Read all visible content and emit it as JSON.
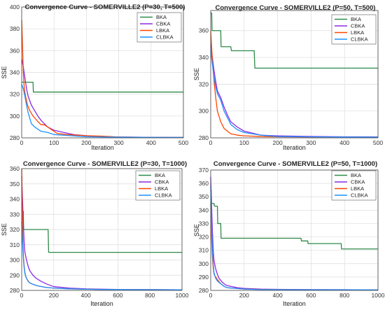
{
  "chart_data": [
    {
      "type": "line",
      "title": "Convergence Curve - SOMERVILLE2 (P=30, T=500)",
      "xlabel": "Iteration",
      "ylabel": "SSE",
      "xlim": [
        0,
        500
      ],
      "ylim": [
        280,
        400
      ],
      "xticks": [
        "0",
        "100",
        "200",
        "300",
        "400",
        "500"
      ],
      "yticks": [
        "280",
        "300",
        "320",
        "340",
        "360",
        "380",
        "400"
      ],
      "grid": true,
      "legend_position": "top-right",
      "series": [
        {
          "name": "BKA",
          "color": "#2e8b4a",
          "x": [
            0,
            35,
            36,
            500
          ],
          "y": [
            331,
            331,
            322,
            322
          ]
        },
        {
          "name": "CBKA",
          "color": "#8a2be2",
          "x": [
            0,
            5,
            10,
            15,
            20,
            30,
            40,
            50,
            60,
            80,
            100,
            130,
            160,
            200,
            250,
            300,
            400,
            500
          ],
          "y": [
            352,
            345,
            335,
            325,
            318,
            310,
            305,
            300,
            296,
            290,
            287,
            285,
            283,
            282,
            281,
            280.8,
            280.5,
            280.4
          ]
        },
        {
          "name": "LBKA",
          "color": "#ff4500",
          "x": [
            0,
            3,
            5,
            8,
            12,
            18,
            25,
            35,
            50,
            60,
            70,
            90,
            110,
            140,
            200,
            250,
            300,
            400,
            500
          ],
          "y": [
            388,
            360,
            340,
            325,
            318,
            310,
            305,
            300,
            295,
            292,
            292,
            288,
            284,
            283,
            282,
            281.5,
            280.8,
            280.5,
            280.4
          ]
        },
        {
          "name": "CLBKA",
          "color": "#1e90ff",
          "x": [
            0,
            5,
            10,
            15,
            20,
            25,
            30,
            40,
            50,
            60,
            80,
            100,
            150,
            200,
            300,
            400,
            500
          ],
          "y": [
            329,
            325,
            318,
            310,
            303,
            298,
            293,
            290,
            288,
            286,
            285,
            283,
            282,
            281,
            280.6,
            280.5,
            280.4
          ]
        }
      ]
    },
    {
      "type": "line",
      "title": "Convergence Curve - SOMERVILLE2 (P=50, T=500)",
      "xlabel": "Iteration",
      "ylabel": "SSE",
      "xlim": [
        0,
        500
      ],
      "ylim": [
        280,
        375
      ],
      "xticks": [
        "0",
        "100",
        "200",
        "300",
        "400",
        "500"
      ],
      "yticks": [
        "280",
        "300",
        "320",
        "340",
        "360"
      ],
      "grid": true,
      "legend_position": "top-right",
      "series": [
        {
          "name": "BKA",
          "color": "#2e8b4a",
          "x": [
            0,
            3,
            4,
            30,
            31,
            60,
            62,
            130,
            132,
            500
          ],
          "y": [
            373,
            373,
            360,
            360,
            348,
            348,
            345,
            345,
            332,
            332
          ]
        },
        {
          "name": "CBKA",
          "color": "#8a2be2",
          "x": [
            0,
            5,
            10,
            15,
            20,
            30,
            40,
            50,
            60,
            70,
            80,
            100,
            150,
            200,
            300,
            400,
            500
          ],
          "y": [
            350,
            340,
            330,
            322,
            315,
            310,
            303,
            297,
            292,
            290,
            288,
            285,
            282,
            281.5,
            281,
            280.8,
            280.7
          ]
        },
        {
          "name": "LBKA",
          "color": "#ff4500",
          "x": [
            0,
            5,
            10,
            15,
            20,
            30,
            40,
            50,
            60,
            80,
            100,
            150,
            200,
            300,
            500
          ],
          "y": [
            360,
            338,
            322,
            310,
            300,
            292,
            287,
            285,
            283,
            282,
            281.5,
            281,
            280.8,
            280.6,
            280.5
          ]
        },
        {
          "name": "CLBKA",
          "color": "#1e90ff",
          "x": [
            0,
            5,
            10,
            15,
            20,
            30,
            40,
            50,
            60,
            70,
            80,
            100,
            150,
            200,
            300,
            500
          ],
          "y": [
            345,
            335,
            325,
            318,
            313,
            308,
            300,
            295,
            290,
            288,
            286,
            284,
            282,
            281,
            280.7,
            280.5
          ]
        }
      ]
    },
    {
      "type": "line",
      "title": "Convergence Curve - SOMERVILLE2 (P=30, T=1000)",
      "xlabel": "Iteration",
      "ylabel": "SSE",
      "xlim": [
        0,
        1000
      ],
      "ylim": [
        280,
        360
      ],
      "xticks": [
        "0",
        "200",
        "400",
        "600",
        "800",
        "1000"
      ],
      "yticks": [
        "280",
        "290",
        "300",
        "310",
        "320",
        "330",
        "340",
        "350",
        "360"
      ],
      "grid": true,
      "legend_position": "top-right",
      "series": [
        {
          "name": "BKA",
          "color": "#2e8b4a",
          "x": [
            0,
            10,
            12,
            165,
            168,
            1000
          ],
          "y": [
            332,
            332,
            320,
            320,
            305,
            305
          ]
        },
        {
          "name": "CBKA",
          "color": "#8a2be2",
          "x": [
            0,
            5,
            10,
            15,
            20,
            30,
            40,
            50,
            70,
            90,
            120,
            160,
            200,
            300,
            400,
            600,
            800,
            1000
          ],
          "y": [
            355,
            340,
            325,
            312,
            305,
            300,
            296,
            293,
            290,
            288,
            286,
            284,
            282.5,
            281.5,
            281,
            280.6,
            280.5,
            280.4
          ]
        },
        {
          "name": "LBKA",
          "color": "#ff4500",
          "x": [
            0,
            4,
            8,
            12,
            18,
            25,
            35,
            50,
            70,
            100,
            150,
            200,
            300,
            500,
            1000
          ],
          "y": [
            360,
            330,
            310,
            300,
            293,
            289,
            287,
            285,
            284,
            283,
            282,
            281.5,
            281,
            280.6,
            280.4
          ]
        },
        {
          "name": "CLBKA",
          "color": "#1e90ff",
          "x": [
            0,
            5,
            10,
            15,
            20,
            30,
            40,
            50,
            70,
            100,
            150,
            200,
            300,
            500,
            1000
          ],
          "y": [
            325,
            312,
            302,
            295,
            291,
            288,
            286,
            285,
            284,
            283,
            282,
            281.5,
            281,
            280.6,
            280.4
          ]
        }
      ]
    },
    {
      "type": "line",
      "title": "Convergence Curve - SOMERVILLE2 (P=50, T=1000)",
      "xlabel": "Iteration",
      "ylabel": "SSE",
      "xlim": [
        0,
        1000
      ],
      "ylim": [
        280,
        370
      ],
      "xticks": [
        "0",
        "200",
        "400",
        "600",
        "800",
        "1000"
      ],
      "yticks": [
        "280",
        "290",
        "300",
        "310",
        "320",
        "330",
        "340",
        "350",
        "360",
        "370"
      ],
      "grid": true,
      "legend_position": "top-right",
      "series": [
        {
          "name": "BKA",
          "color": "#2e8b4a",
          "x": [
            0,
            3,
            5,
            20,
            22,
            40,
            42,
            60,
            62,
            540,
            542,
            580,
            582,
            780,
            782,
            1000
          ],
          "y": [
            355,
            355,
            345,
            345,
            343,
            343,
            330,
            330,
            319,
            319,
            317,
            317,
            315,
            315,
            311,
            311
          ]
        },
        {
          "name": "CBKA",
          "color": "#8a2be2",
          "x": [
            0,
            5,
            10,
            15,
            20,
            30,
            40,
            50,
            70,
            90,
            120,
            160,
            200,
            300,
            400,
            600,
            800,
            1000
          ],
          "y": [
            365,
            345,
            325,
            310,
            302,
            296,
            292,
            289,
            286,
            284,
            283,
            282,
            281.5,
            281,
            280.8,
            280.6,
            280.5,
            280.4
          ]
        },
        {
          "name": "LBKA",
          "color": "#ff4500",
          "x": [
            0,
            5,
            10,
            15,
            20,
            30,
            40,
            60,
            80,
            100,
            150,
            200,
            300,
            500,
            1000
          ],
          "y": [
            345,
            320,
            305,
            297,
            292,
            290,
            288,
            285,
            283,
            282,
            281.5,
            281,
            280.7,
            280.5,
            280.4
          ]
        },
        {
          "name": "CLBKA",
          "color": "#1e90ff",
          "x": [
            0,
            5,
            10,
            15,
            20,
            30,
            40,
            60,
            80,
            100,
            150,
            200,
            300,
            500,
            1000
          ],
          "y": [
            358,
            330,
            310,
            300,
            293,
            289,
            287,
            285,
            283,
            282,
            281.5,
            281,
            280.6,
            280.5,
            280.4
          ]
        }
      ]
    }
  ]
}
